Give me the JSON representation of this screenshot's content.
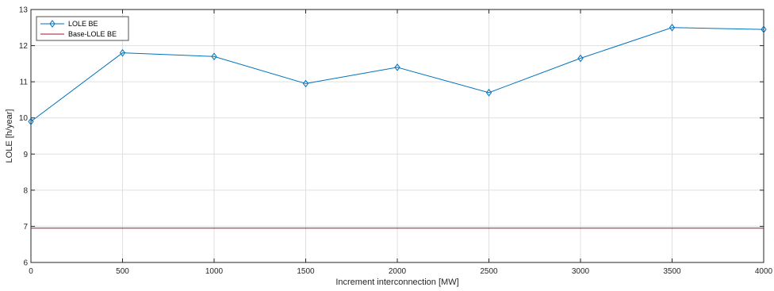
{
  "chart_data": {
    "type": "line",
    "title": "",
    "xlabel": "Increment interconnection [MW]",
    "ylabel": "LOLE [h/year]",
    "xlim": [
      0,
      4000
    ],
    "ylim": [
      6,
      13
    ],
    "xticks": [
      0,
      500,
      1000,
      1500,
      2000,
      2500,
      3000,
      3500,
      4000
    ],
    "yticks": [
      6,
      7,
      8,
      9,
      10,
      11,
      12,
      13
    ],
    "grid": true,
    "legend_position": "top-left",
    "series": [
      {
        "name": "LOLE BE",
        "color": "#0072BD",
        "marker": "diamond",
        "x": [
          0,
          500,
          1000,
          1500,
          2000,
          2500,
          3000,
          3500,
          4000
        ],
        "y": [
          9.9,
          11.8,
          11.7,
          10.95,
          11.4,
          10.7,
          11.65,
          12.5,
          12.45
        ]
      },
      {
        "name": "Base-LOLE BE",
        "color": "#A2142F",
        "marker": "none",
        "x": [
          0,
          4000
        ],
        "y": [
          6.95,
          6.95
        ]
      }
    ]
  }
}
